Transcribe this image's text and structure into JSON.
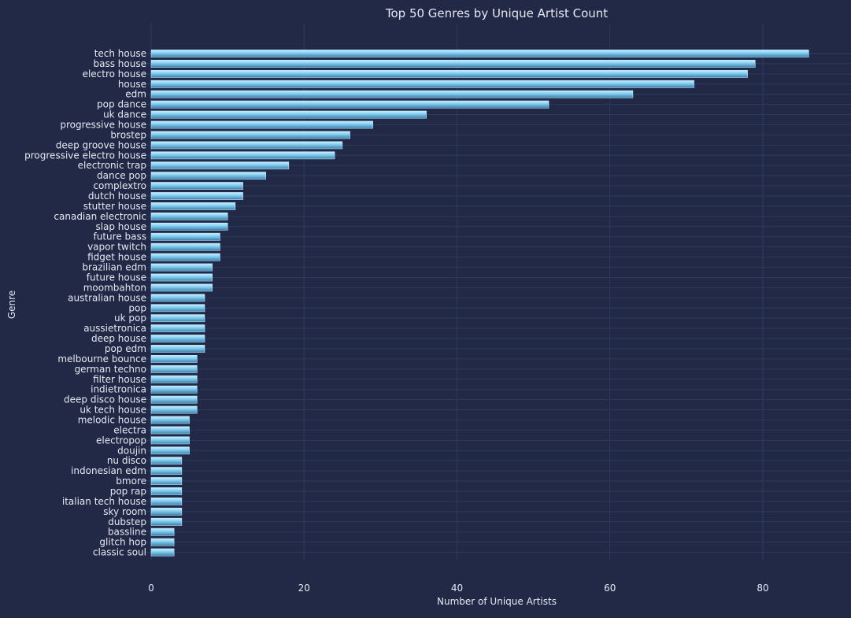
{
  "chart_data": {
    "type": "bar",
    "orientation": "horizontal",
    "title": "Top 50 Genres by Unique Artist Count",
    "xlabel": "Number of Unique Artists",
    "ylabel": "Genre",
    "xlim": [
      0,
      90
    ],
    "xticks": [
      0,
      20,
      40,
      60,
      80
    ],
    "grid": true,
    "legend": "none",
    "colors": {
      "background": "#212946",
      "bar_fill": "#7ecbef",
      "bar_edge": "#b7e6ff",
      "grid": "#2e3a5c",
      "text": "#e6e9f2"
    },
    "categories": [
      "tech house",
      "bass house",
      "electro house",
      "house",
      "edm",
      "pop dance",
      "uk dance",
      "progressive house",
      "brostep",
      "deep groove house",
      "progressive electro house",
      "electronic trap",
      "dance pop",
      "complextro",
      "dutch house",
      "stutter house",
      "canadian electronic",
      "slap house",
      "future bass",
      "vapor twitch",
      "fidget house",
      "brazilian edm",
      "future house",
      "moombahton",
      "australian house",
      "pop",
      "uk pop",
      "aussietronica",
      "deep house",
      "pop edm",
      "melbourne bounce",
      "german techno",
      "filter house",
      "indietronica",
      "deep disco house",
      "uk tech house",
      "melodic house",
      "electra",
      "electropop",
      "doujin",
      "nu disco",
      "indonesian edm",
      "bmore",
      "pop rap",
      "italian tech house",
      "sky room",
      "dubstep",
      "bassline",
      "glitch hop",
      "classic soul"
    ],
    "values": [
      86,
      79,
      78,
      71,
      63,
      52,
      36,
      29,
      26,
      25,
      24,
      18,
      15,
      12,
      12,
      11,
      10,
      10,
      9,
      9,
      9,
      8,
      8,
      8,
      7,
      7,
      7,
      7,
      7,
      7,
      6,
      6,
      6,
      6,
      6,
      6,
      5,
      5,
      5,
      5,
      4,
      4,
      4,
      4,
      4,
      4,
      4,
      3,
      3,
      3
    ]
  }
}
